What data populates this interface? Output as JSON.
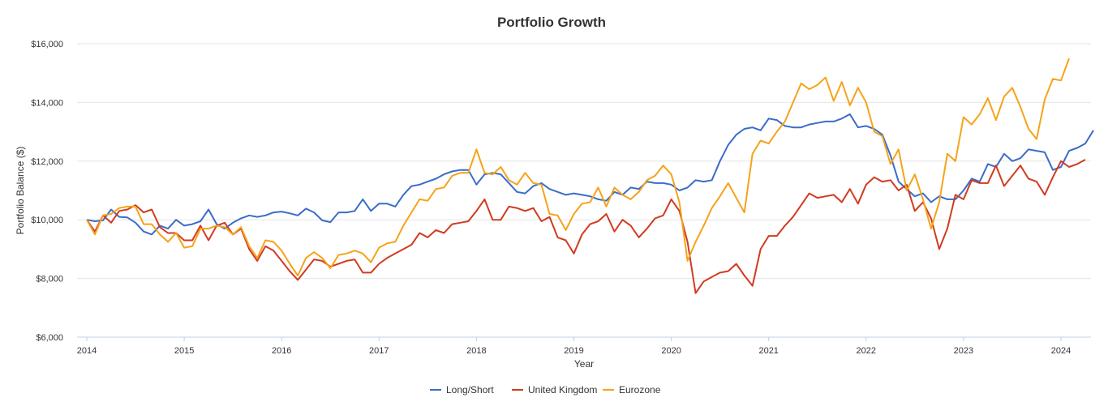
{
  "chart_data": {
    "type": "line",
    "title": "Portfolio Growth",
    "xlabel": "Year",
    "ylabel": "Portfolio Balance ($)",
    "ylim": [
      6000,
      16000
    ],
    "yticks": [
      6000,
      8000,
      10000,
      12000,
      14000,
      16000
    ],
    "ytick_labels": [
      "$6,000",
      "$8,000",
      "$10,000",
      "$12,000",
      "$14,000",
      "$16,000"
    ],
    "xlim": [
      2014.0,
      2024.25
    ],
    "xticks": [
      2014,
      2015,
      2016,
      2017,
      2018,
      2019,
      2020,
      2021,
      2022,
      2023,
      2024
    ],
    "xtick_labels": [
      "2014",
      "2015",
      "2016",
      "2017",
      "2018",
      "2019",
      "2020",
      "2021",
      "2022",
      "2023",
      "2024"
    ],
    "grid": true,
    "legend_position": "bottom-center",
    "x_start": 2014.0,
    "x_step_months": 1,
    "series": [
      {
        "name": "Long/Short",
        "color": "#3b6cc9",
        "values": [
          10000,
          9950,
          9980,
          10350,
          10100,
          10080,
          9900,
          9600,
          9500,
          9800,
          9700,
          10000,
          9800,
          9850,
          9950,
          10350,
          9850,
          9700,
          9900,
          10050,
          10150,
          10100,
          10150,
          10250,
          10280,
          10220,
          10150,
          10380,
          10250,
          9980,
          9920,
          10250,
          10250,
          10300,
          10700,
          10300,
          10550,
          10550,
          10450,
          10850,
          11150,
          11200,
          11300,
          11400,
          11550,
          11650,
          11700,
          11700,
          11200,
          11550,
          11600,
          11550,
          11250,
          10950,
          10900,
          11150,
          11250,
          11050,
          10950,
          10850,
          10900,
          10850,
          10800,
          10700,
          10650,
          10950,
          10850,
          11100,
          11050,
          11300,
          11250,
          11250,
          11200,
          11000,
          11100,
          11350,
          11300,
          11350,
          12000,
          12550,
          12900,
          13100,
          13150,
          13050,
          13450,
          13400,
          13200,
          13150,
          13150,
          13250,
          13300,
          13350,
          13350,
          13450,
          13600,
          13150,
          13200,
          13100,
          12900,
          12200,
          11300,
          11050,
          10800,
          10900,
          10600,
          10800,
          10700,
          10700,
          11000,
          11400,
          11300,
          11900,
          11800,
          12250,
          12000,
          12100,
          12400,
          12350,
          12300,
          11700,
          11800,
          12350,
          12450,
          12600,
          13050
        ]
      },
      {
        "name": "United Kingdom",
        "color": "#d13b20",
        "values": [
          10000,
          9600,
          10150,
          9900,
          10300,
          10350,
          10500,
          10250,
          10350,
          9750,
          9550,
          9550,
          9300,
          9300,
          9800,
          9300,
          9800,
          9900,
          9500,
          9700,
          9000,
          8600,
          9100,
          8950,
          8600,
          8250,
          7950,
          8300,
          8650,
          8600,
          8400,
          8500,
          8600,
          8650,
          8200,
          8200,
          8500,
          8700,
          8850,
          9000,
          9150,
          9550,
          9400,
          9650,
          9550,
          9850,
          9900,
          9950,
          10300,
          10700,
          10000,
          10000,
          10450,
          10400,
          10300,
          10400,
          9950,
          10100,
          9400,
          9300,
          8850,
          9500,
          9850,
          9950,
          10200,
          9600,
          10000,
          9800,
          9400,
          9700,
          10050,
          10150,
          10700,
          10300,
          9250,
          7500,
          7900,
          8050,
          8200,
          8250,
          8500,
          8100,
          7750,
          9000,
          9450,
          9450,
          9800,
          10100,
          10500,
          10900,
          10750,
          10800,
          10850,
          10600,
          11050,
          10550,
          11200,
          11450,
          11300,
          11350,
          11000,
          11200,
          10300,
          10600,
          10050,
          9000,
          9700,
          10850,
          10700,
          11350,
          11250,
          11250,
          11850,
          11150,
          11500,
          11850,
          11400,
          11300,
          10850,
          11450,
          12000,
          11800,
          11900,
          12050
        ]
      },
      {
        "name": "Eurozone",
        "color": "#f5a31a",
        "values": [
          10000,
          9500,
          10150,
          10200,
          10400,
          10450,
          10450,
          9850,
          9850,
          9500,
          9250,
          9550,
          9050,
          9100,
          9700,
          9700,
          9800,
          9750,
          9500,
          9750,
          9100,
          8700,
          9300,
          9250,
          8950,
          8500,
          8100,
          8700,
          8900,
          8700,
          8350,
          8800,
          8850,
          8950,
          8850,
          8550,
          9050,
          9200,
          9250,
          9800,
          10250,
          10700,
          10650,
          11050,
          11100,
          11500,
          11600,
          11600,
          12400,
          11600,
          11550,
          11800,
          11350,
          11200,
          11600,
          11250,
          11200,
          10200,
          10150,
          9650,
          10200,
          10550,
          10600,
          11100,
          10450,
          11100,
          10850,
          10700,
          10950,
          11350,
          11500,
          11850,
          11550,
          10600,
          8600,
          9250,
          9800,
          10400,
          10800,
          11250,
          10750,
          10250,
          12250,
          12700,
          12600,
          13000,
          13350,
          14000,
          14650,
          14450,
          14600,
          14850,
          14050,
          14700,
          13900,
          14500,
          14000,
          13000,
          12850,
          11900,
          12400,
          11000,
          11550,
          10700,
          9700,
          10600,
          12250,
          12000,
          13500,
          13250,
          13600,
          14150,
          13400,
          14200,
          14500,
          13850,
          13100,
          12750,
          14100,
          14800,
          14750,
          15500
        ]
      }
    ]
  }
}
